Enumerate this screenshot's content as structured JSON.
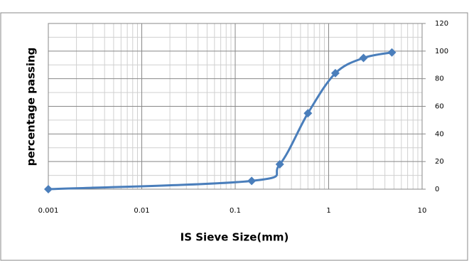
{
  "chart_data": {
    "type": "line",
    "x_label": "IS Sieve Size(mm)",
    "y_label": "percentage passing",
    "x_scale": "log",
    "x": [
      0.001,
      0.15,
      0.3,
      0.6,
      1.18,
      2.36,
      4.75
    ],
    "series": [
      {
        "color": "#4a7ebb",
        "values": [
          0,
          6,
          18,
          55,
          84,
          95,
          99
        ]
      }
    ],
    "xlim": [
      0.001,
      10
    ],
    "xticks": [
      0.001,
      0.01,
      0.1,
      1,
      10
    ],
    "ylim": [
      0,
      120
    ],
    "yticks": [
      0,
      20,
      40,
      60,
      80,
      100,
      120
    ],
    "y_axis_side": "right",
    "grid": true,
    "minor_grid": true,
    "smooth": true,
    "marker": "diamond"
  }
}
